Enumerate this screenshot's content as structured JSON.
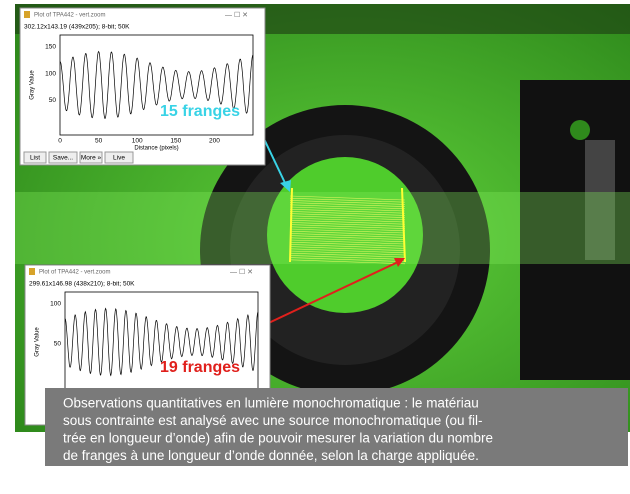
{
  "windows": [
    {
      "title": "Plot of TPA442 - vert.zoom",
      "info": "302.12x143.19  (439x205); 8-bit; 50K",
      "y_label": "Gray Value",
      "x_label": "Distance (pixels)",
      "y_ticks": [
        "150",
        "100",
        "50"
      ],
      "x_ticks": [
        "0",
        "50",
        "100",
        "150",
        "200"
      ],
      "buttons": [
        "List",
        "Save...",
        "More »",
        "Live"
      ]
    },
    {
      "title": "Plot of TPA442 - vert.zoom",
      "info": "299.61x146.98  (438x210); 8-bit; 50K",
      "y_label": "Gray Value",
      "y_ticks": [
        "100",
        "50"
      ]
    }
  ],
  "annotations": [
    "15 franges",
    "19 franges"
  ],
  "caption": [
    "Observations quantitatives en lumière monochromatique : le matériau",
    "sous contrainte est analysé avec une source monochromatique (ou fil-",
    "trée en longueur d’onde) afin de pouvoir mesurer la variation du nombre",
    "de franges à une longueur d’onde donnée, selon la charge appliquée."
  ]
}
